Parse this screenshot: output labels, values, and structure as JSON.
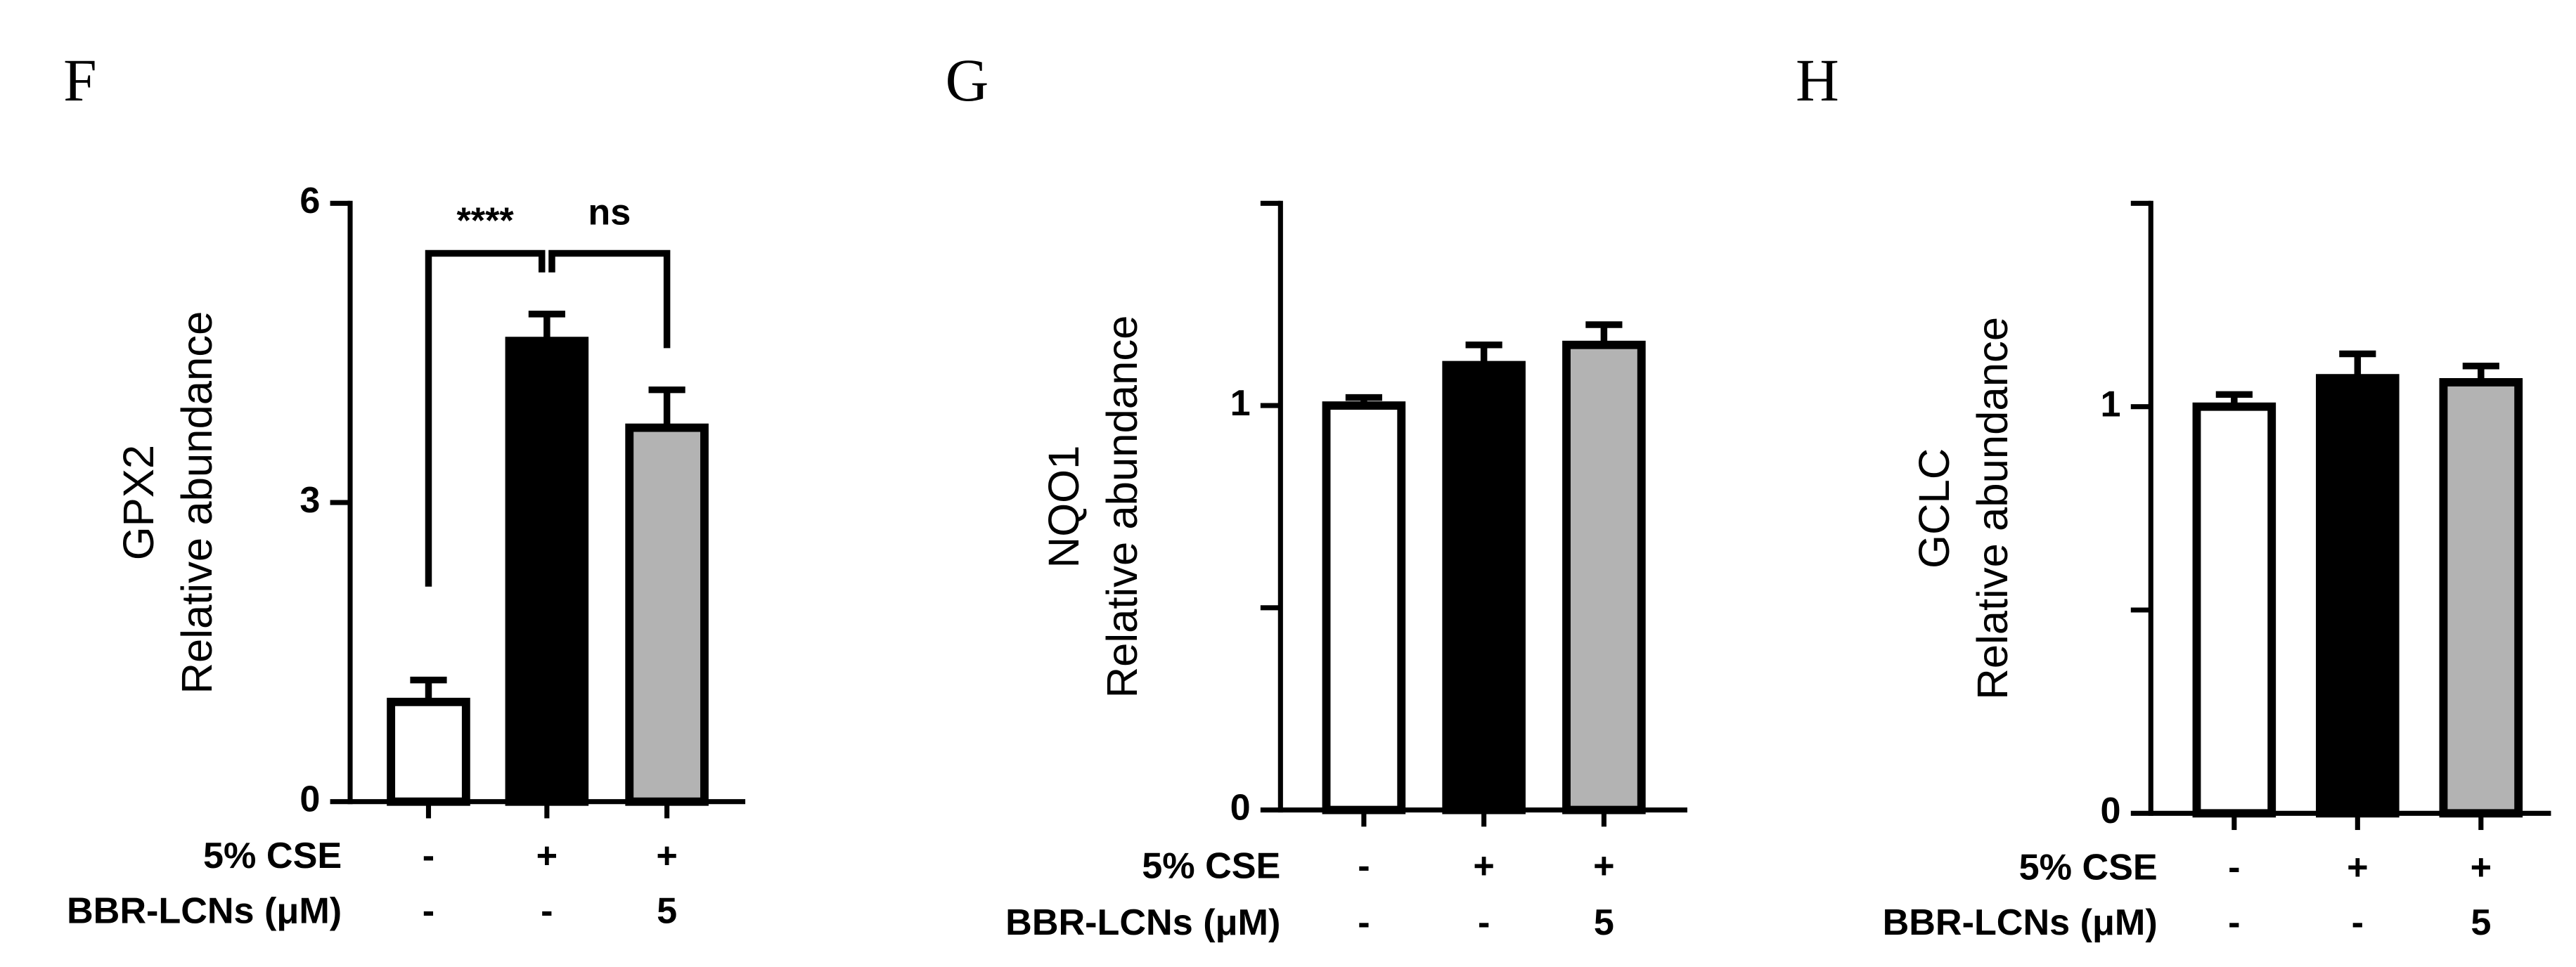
{
  "chart_data": [
    {
      "type": "bar",
      "panel": "F",
      "ylabel": [
        "GPX2",
        "Relative abundance"
      ],
      "values": [
        1.0,
        4.62,
        3.75
      ],
      "errors": [
        0.22,
        0.27,
        0.38
      ],
      "colors": [
        "#ffffff",
        "#000000",
        "#b3b3b3"
      ],
      "ylim": [
        0,
        6
      ],
      "yticks": [
        0,
        3,
        6
      ],
      "yminor_ticks": [],
      "conditions": [
        {
          "name": "5% CSE",
          "values": [
            "-",
            "+",
            "+"
          ]
        },
        {
          "name": "BBR-LCNs (μM)",
          "values": [
            "-",
            "-",
            "5"
          ]
        }
      ],
      "annotations": [
        {
          "text": "****",
          "from": 0,
          "to": 1
        },
        {
          "text": "ns",
          "from": 1,
          "to": 2
        }
      ]
    },
    {
      "type": "bar",
      "panel": "G",
      "ylabel": [
        "NQO1",
        "Relative abundance"
      ],
      "values": [
        1.0,
        1.1,
        1.15
      ],
      "errors": [
        0.02,
        0.05,
        0.05
      ],
      "colors": [
        "#ffffff",
        "#000000",
        "#b3b3b3"
      ],
      "ylim": [
        0,
        1.5
      ],
      "yticks": [
        0,
        1
      ],
      "yminor_ticks": [
        0.5,
        1.5
      ],
      "conditions": [
        {
          "name": "5% CSE",
          "values": [
            "-",
            "+",
            "+"
          ]
        },
        {
          "name": "BBR-LCNs (μM)",
          "values": [
            "-",
            "-",
            "5"
          ]
        }
      ],
      "annotations": []
    },
    {
      "type": "bar",
      "panel": "H",
      "ylabel": [
        "GCLC",
        "Relative abundance"
      ],
      "values": [
        1.0,
        1.07,
        1.06
      ],
      "errors": [
        0.03,
        0.06,
        0.04
      ],
      "colors": [
        "#ffffff",
        "#000000",
        "#b3b3b3"
      ],
      "ylim": [
        0,
        1.5
      ],
      "yticks": [
        0,
        1
      ],
      "yminor_ticks": [
        0.5,
        1.5
      ],
      "conditions": [
        {
          "name": "5% CSE",
          "values": [
            "-",
            "+",
            "+"
          ]
        },
        {
          "name": "BBR-LCNs (μM)",
          "values": [
            "-",
            "-",
            "5"
          ]
        }
      ],
      "annotations": []
    }
  ]
}
